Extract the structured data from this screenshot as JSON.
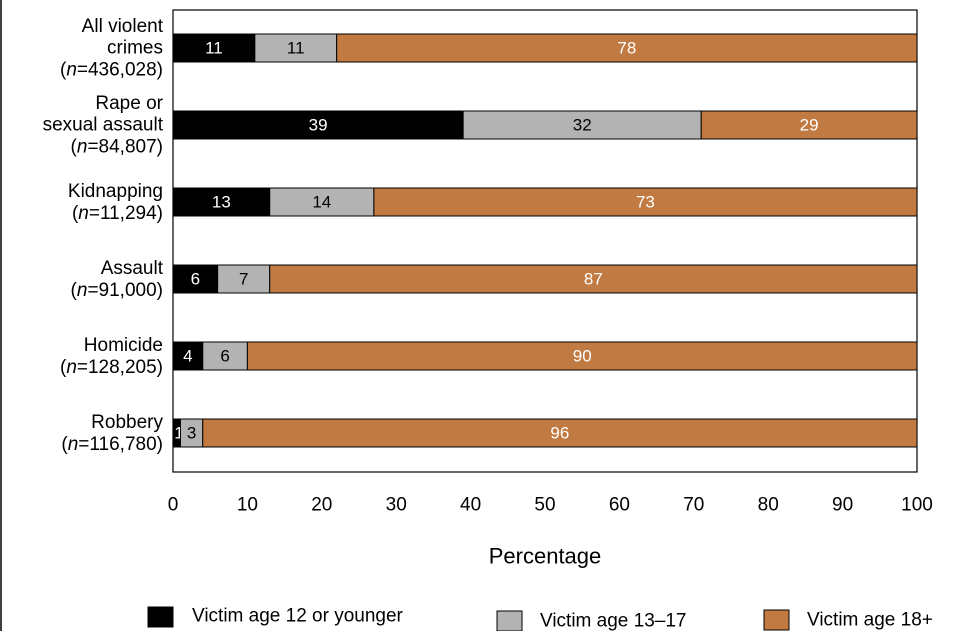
{
  "chart_data": {
    "type": "bar",
    "orientation": "horizontal",
    "stacked": true,
    "categories": [
      {
        "lines": [
          "All violent",
          "crimes"
        ],
        "n": "=436,028)"
      },
      {
        "lines": [
          "Rape or",
          "sexual assault"
        ],
        "n": "=84,807)"
      },
      {
        "lines": [
          "Kidnapping"
        ],
        "n": "=11,294)"
      },
      {
        "lines": [
          "Assault"
        ],
        "n": "=91,000)"
      },
      {
        "lines": [
          "Homicide"
        ],
        "n": "=128,205)"
      },
      {
        "lines": [
          "Robbery"
        ],
        "n": "=116,780)"
      }
    ],
    "n_prefix_open": "(",
    "n_symbol": "n",
    "series": [
      {
        "name": "Victim age 12 or younger",
        "values": [
          11,
          39,
          13,
          6,
          4,
          1
        ],
        "color": "#000000",
        "label_color": "#ffffff"
      },
      {
        "name": "Victim age 13–17",
        "values": [
          11,
          32,
          14,
          7,
          6,
          3
        ],
        "color": "#b3b3b3",
        "label_color": "#000000"
      },
      {
        "name": "Victim age 18+",
        "values": [
          78,
          29,
          73,
          87,
          90,
          96
        ],
        "color": "#c07a42",
        "label_color": "#ffffff"
      }
    ],
    "xlabel": "Percentage",
    "xlim": [
      0,
      100
    ],
    "xticks": [
      0,
      10,
      20,
      30,
      40,
      50,
      60,
      70,
      80,
      90,
      100
    ],
    "grid": false,
    "legend_position": "bottom"
  }
}
